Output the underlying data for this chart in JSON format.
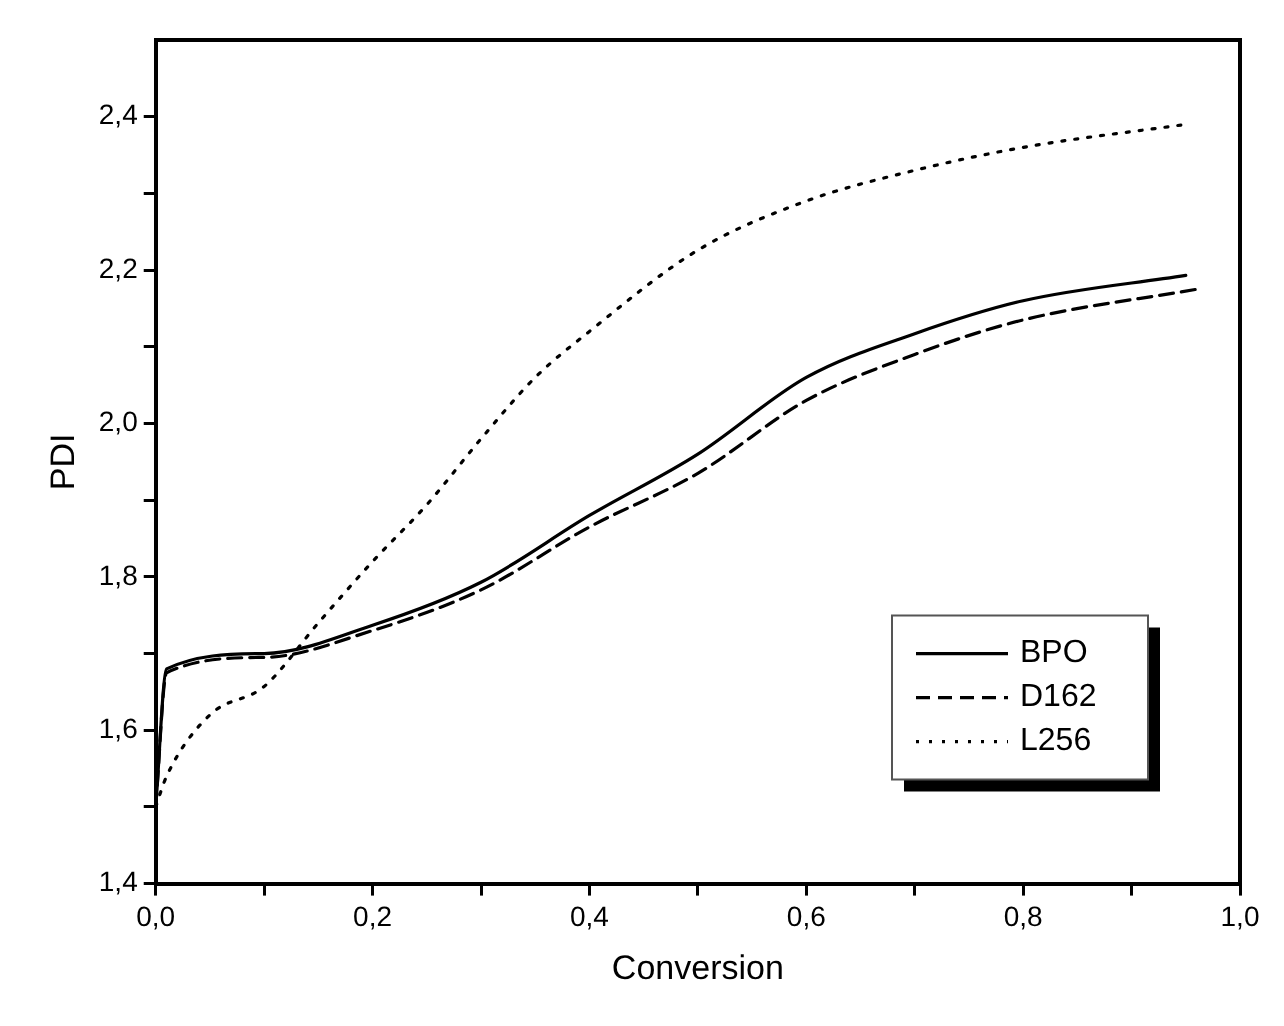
{
  "chart_data": {
    "type": "line",
    "xlabel": "Conversion",
    "ylabel": "PDI",
    "xlim": [
      0,
      1.0
    ],
    "ylim": [
      1.4,
      2.5
    ],
    "xticks": [
      {
        "value": 0,
        "label": "0,0"
      },
      {
        "value": 0.1,
        "label": null
      },
      {
        "value": 0.2,
        "label": "0,2"
      },
      {
        "value": 0.3,
        "label": null
      },
      {
        "value": 0.4,
        "label": "0,4"
      },
      {
        "value": 0.5,
        "label": null
      },
      {
        "value": 0.6,
        "label": "0,6"
      },
      {
        "value": 0.7,
        "label": null
      },
      {
        "value": 0.8,
        "label": "0,8"
      },
      {
        "value": 0.9,
        "label": null
      },
      {
        "value": 1.0,
        "label": "1,0"
      }
    ],
    "yticks": [
      {
        "value": 1.4,
        "label": "1,4"
      },
      {
        "value": 1.5,
        "label": null
      },
      {
        "value": 1.6,
        "label": "1,6"
      },
      {
        "value": 1.7,
        "label": null
      },
      {
        "value": 1.8,
        "label": "1,8"
      },
      {
        "value": 1.9,
        "label": null
      },
      {
        "value": 2.0,
        "label": "2,0"
      },
      {
        "value": 2.1,
        "label": null
      },
      {
        "value": 2.2,
        "label": "2,2"
      },
      {
        "value": 2.3,
        "label": null
      },
      {
        "value": 2.4,
        "label": "2,4"
      }
    ],
    "grid": false,
    "legend": "bottom right",
    "marker": "none",
    "series": [
      {
        "name": "BPO",
        "color": "#000000",
        "line_style": "solid",
        "x": [
          0,
          0.01,
          0.1,
          0.2,
          0.3,
          0.4,
          0.5,
          0.6,
          0.7,
          0.8,
          0.95
        ],
        "values": [
          1.5,
          1.68,
          1.7,
          1.737,
          1.793,
          1.88,
          1.96,
          2.06,
          2.117,
          2.16,
          2.193
        ]
      },
      {
        "name": "D162",
        "color": "#000000",
        "line_style": "dashed",
        "x": [
          0,
          0.01,
          0.1,
          0.2,
          0.3,
          0.4,
          0.5,
          0.6,
          0.7,
          0.8,
          0.96
        ],
        "values": [
          1.5,
          1.675,
          1.695,
          1.73,
          1.783,
          1.865,
          1.935,
          2.03,
          2.09,
          2.135,
          2.175
        ]
      },
      {
        "name": "L256",
        "color": "#000000",
        "line_style": "dotted",
        "x": [
          0,
          0.01,
          0.05,
          0.1,
          0.15,
          0.2,
          0.25,
          0.3,
          0.35,
          0.4,
          0.5,
          0.6,
          0.7,
          0.8,
          0.95
        ],
        "values": [
          1.5,
          1.54,
          1.62,
          1.657,
          1.74,
          1.82,
          1.894,
          1.98,
          2.06,
          2.12,
          2.226,
          2.29,
          2.33,
          2.36,
          2.39
        ]
      }
    ]
  }
}
